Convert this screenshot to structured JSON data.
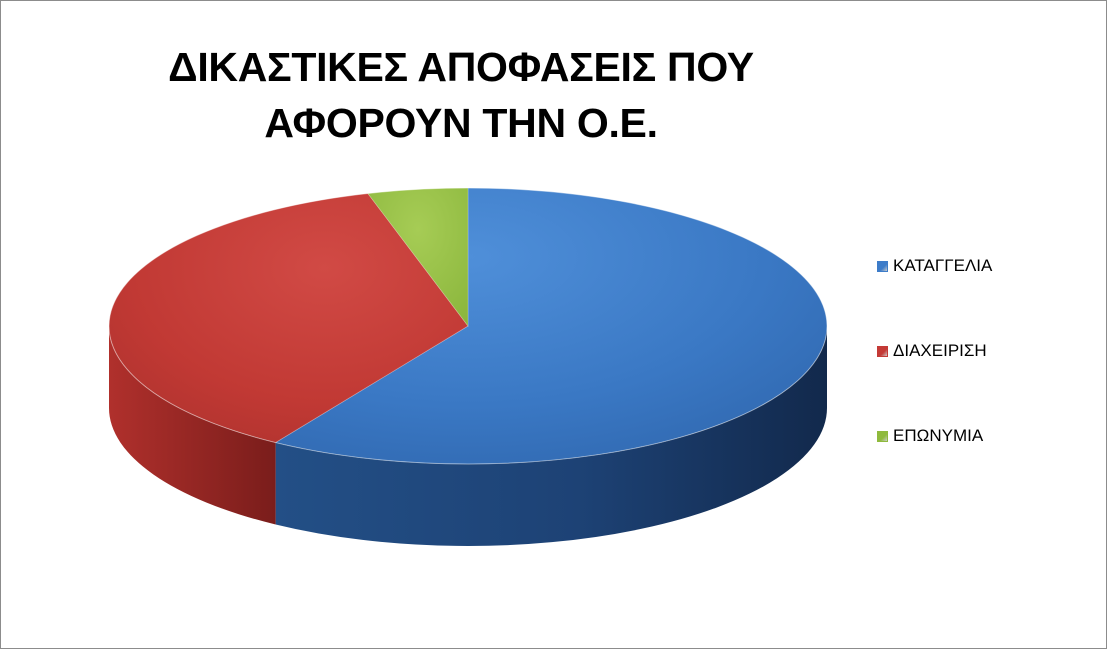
{
  "chart_data": {
    "type": "pie",
    "title": "ΔΙΚΑΣΤΙΚΕΣ ΑΠΟΦΑΣΕΙΣ ΠΟΥ ΑΦΟΡΟΥΝ ΤΗΝ Ο.Ε.",
    "three_d": true,
    "legend_position": "right",
    "categories": [
      "ΚΑΤΑΓΓΕΛΙΑ",
      "ΔΙΑΧΕΙΡΙΣΗ",
      "ΕΠΩΝΥΜΙΑ"
    ],
    "values": [
      59,
      36.5,
      4.5
    ],
    "colors": [
      "#3d7cc9",
      "#c43a36",
      "#8fba3d"
    ]
  }
}
